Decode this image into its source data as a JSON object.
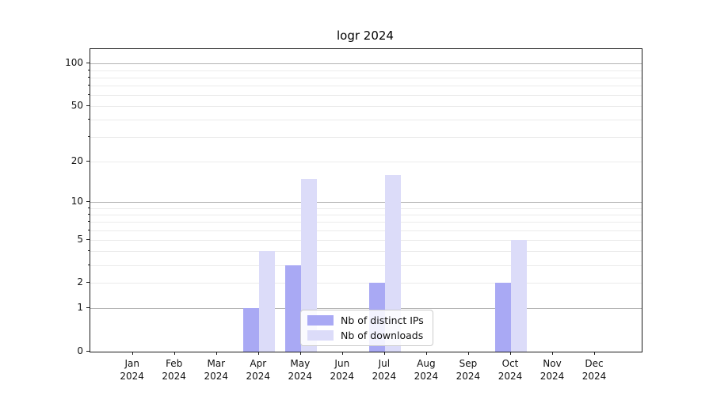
{
  "title": "logr 2024",
  "chart_data": {
    "type": "bar",
    "title": "logr 2024",
    "subtitle": "",
    "categories": [
      "Jan",
      "Feb",
      "Mar",
      "Apr",
      "May",
      "Jun",
      "Jul",
      "Aug",
      "Sep",
      "Oct",
      "Nov",
      "Dec"
    ],
    "x_year_label": "2024",
    "series": [
      {
        "name": "Nb of distinct IPs",
        "color": "#a9a9f4",
        "values": [
          0,
          0,
          0,
          1,
          3,
          0,
          2,
          0,
          0,
          2,
          0,
          0
        ]
      },
      {
        "name": "Nb of downloads",
        "color": "#dcdcf9",
        "values": [
          0,
          0,
          0,
          4,
          15,
          0,
          16,
          0,
          0,
          5,
          0,
          0
        ]
      }
    ],
    "yscale": "log1p",
    "ylim": [
      0,
      112
    ],
    "y_ticks": [
      {
        "value": 100,
        "label": "100"
      },
      {
        "value": 50,
        "label": "50"
      },
      {
        "value": 20,
        "label": "20"
      },
      {
        "value": 10,
        "label": "10"
      },
      {
        "value": 5,
        "label": "5"
      },
      {
        "value": 2,
        "label": "2"
      },
      {
        "value": 1,
        "label": "1"
      },
      {
        "value": 0,
        "label": "0"
      }
    ],
    "y_major_gridlines": [
      1,
      10,
      100
    ],
    "y_minor_gridlines": [
      2,
      3,
      4,
      5,
      6,
      7,
      8,
      9,
      20,
      30,
      40,
      50,
      60,
      70,
      80,
      90
    ],
    "grid": true,
    "legend_position": "lower center"
  },
  "legend": {
    "items": [
      {
        "label": "Nb of distinct IPs",
        "color": "#a9a9f4"
      },
      {
        "label": "Nb of downloads",
        "color": "#dcdcf9"
      }
    ]
  },
  "colors": {
    "series_dark": "#a9a9f4",
    "series_light": "#dcdcf9",
    "grid_major": "#b4b4b4",
    "grid_minor": "#ebebeb",
    "spine": "#1a1a1a"
  }
}
